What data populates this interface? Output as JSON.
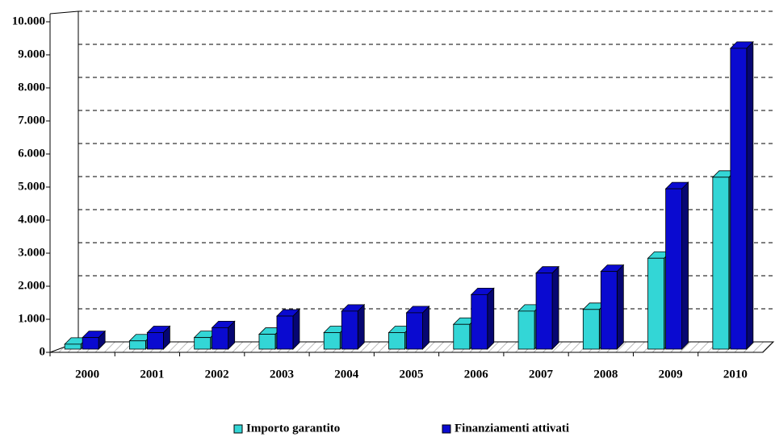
{
  "chart_data": {
    "type": "bar3d",
    "categories": [
      "2000",
      "2001",
      "2002",
      "2003",
      "2004",
      "2005",
      "2006",
      "2007",
      "2008",
      "2009",
      "2010"
    ],
    "series": [
      {
        "name": "Importo garantito",
        "color": "#33d6d6",
        "values": [
          150,
          250,
          350,
          450,
          500,
          500,
          750,
          1150,
          1200,
          2750,
          5200
        ]
      },
      {
        "name": "Finanziamenti attivati",
        "color": "#0a0ad0",
        "values": [
          350,
          500,
          650,
          1000,
          1150,
          1100,
          1650,
          2300,
          2350,
          4850,
          9100
        ]
      }
    ],
    "ylim": [
      0,
      10000
    ],
    "yticks": [
      0,
      {
        "value": 1000,
        "label": "1.000"
      },
      {
        "value": 2000,
        "label": "2.000"
      },
      {
        "value": 3000,
        "label": "3.000"
      },
      {
        "value": 4000,
        "label": "4.000"
      },
      {
        "value": 5000,
        "label": "5.000"
      },
      {
        "value": 6000,
        "label": "6.000"
      },
      {
        "value": 7000,
        "label": "7.000"
      },
      {
        "value": 8000,
        "label": "8.000"
      },
      {
        "value": 9000,
        "label": "9.000"
      },
      {
        "value": 10000,
        "label": "10.000"
      }
    ],
    "grid": true,
    "legend": "bottom"
  }
}
